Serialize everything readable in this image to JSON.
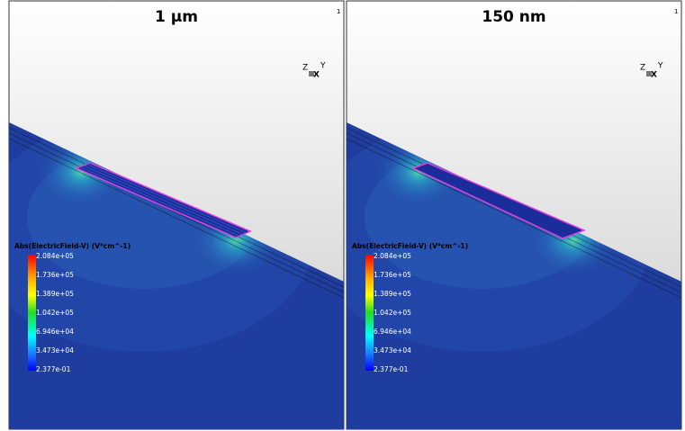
{
  "panels": [
    {
      "title": "1 µm",
      "corner_mark": "1",
      "axes": {
        "z": "Z",
        "y": "Y",
        "x": "X"
      },
      "legend": {
        "title": "Abs(ElectricField-V) (V*cm^-1)",
        "labels": [
          "2.084e+05",
          "1.736e+05",
          "1.389e+05",
          "1.042e+05",
          "6.946e+04",
          "3.473e+04",
          "2.377e-01"
        ]
      }
    },
    {
      "title": "150 nm",
      "corner_mark": "1",
      "axes": {
        "z": "Z",
        "y": "Y",
        "x": "X"
      },
      "legend": {
        "title": "Abs(ElectricField-V) (V*cm^-1)",
        "labels": [
          "2.084e+05",
          "1.736e+05",
          "1.389e+05",
          "1.042e+05",
          "6.946e+04",
          "3.473e+04",
          "2.377e-01"
        ]
      }
    }
  ]
}
